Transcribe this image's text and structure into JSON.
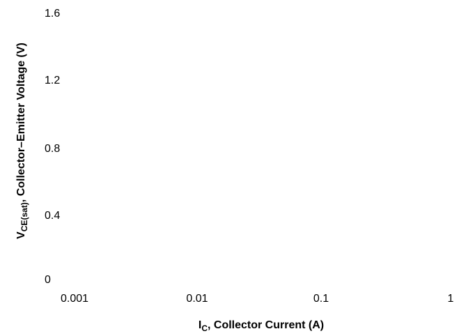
{
  "chart_data": {
    "type": "line",
    "x_scale": "log",
    "xlim": [
      0.001,
      1
    ],
    "ylim": [
      0,
      1.6
    ],
    "x_ticks": [
      "0.001",
      "0.01",
      "0.1",
      "1"
    ],
    "y_ticks": [
      "1.6",
      "1.2",
      "0.8",
      "0.4",
      "0"
    ],
    "xlabel": {
      "main": "I",
      "sub": "C",
      "rest": ", Collector Current (A)"
    },
    "ylabel": {
      "main": "V",
      "sub": "CE(sat)",
      "rest": ", Collector–Emitter Voltage (V)"
    },
    "grid": false,
    "series": []
  }
}
